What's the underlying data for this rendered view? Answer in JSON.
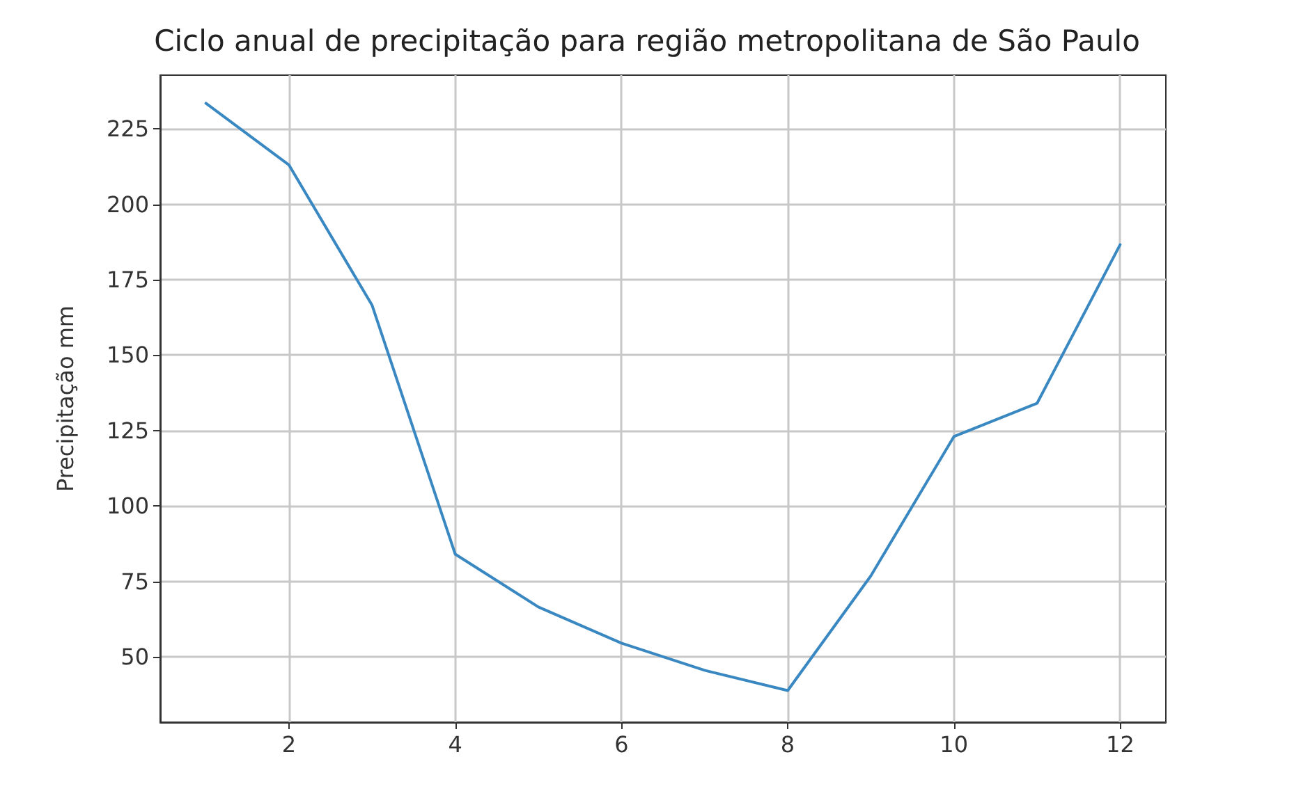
{
  "chart_data": {
    "type": "line",
    "title": "Ciclo anual de precipitação para região metropolitana de São Paulo",
    "ylabel": "Precipitação mm",
    "x": [
      1,
      2,
      3,
      4,
      5,
      6,
      7,
      8,
      9,
      10,
      11,
      12
    ],
    "series": [
      {
        "color": "#3a88c2",
        "values": [
          233.5,
          213,
          166.5,
          84,
          66.5,
          54.5,
          45.5,
          38.8,
          76.8,
          123,
          134,
          186.6
        ]
      }
    ],
    "xlim": [
      0.45,
      12.55
    ],
    "xticks": [
      2,
      4,
      6,
      8,
      10,
      12
    ],
    "ylim": [
      28.3,
      242.8
    ],
    "yticks": [
      50,
      75,
      100,
      125,
      150,
      175,
      200,
      225
    ],
    "grid": true,
    "marker": "none",
    "line_style": "solid"
  }
}
